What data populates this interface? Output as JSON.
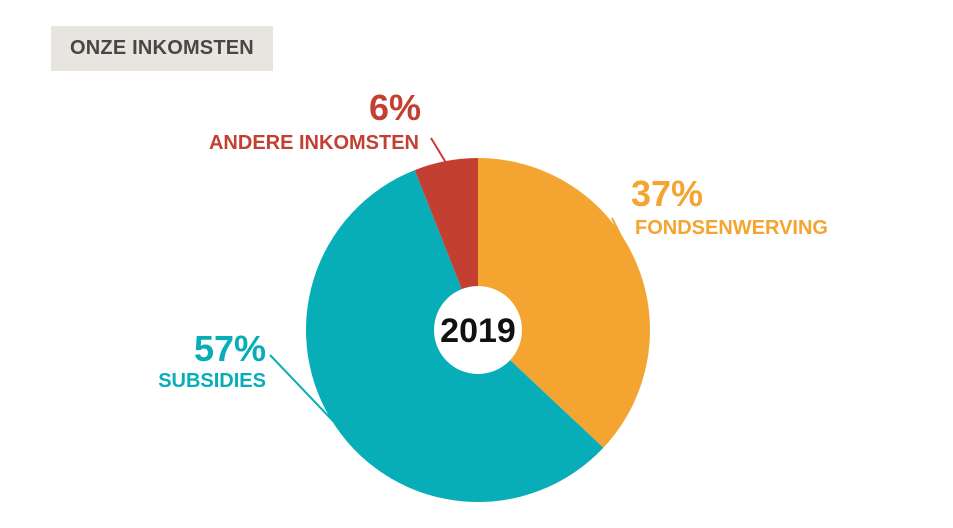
{
  "header": {
    "title": "ONZE INKOMSTEN"
  },
  "chart_data": {
    "type": "pie",
    "title": "ONZE INKOMSTEN",
    "center_label": "2019",
    "slices": [
      {
        "name": "FONDSENWERVING",
        "value": 37,
        "percent_label": "37%",
        "color": "#f3a431"
      },
      {
        "name": "SUBSIDIES",
        "value": 57,
        "percent_label": "57%",
        "color": "#08aeb7"
      },
      {
        "name": "ANDERE INKOMSTEN",
        "value": 6,
        "percent_label": "6%",
        "color": "#c33f32"
      }
    ]
  }
}
